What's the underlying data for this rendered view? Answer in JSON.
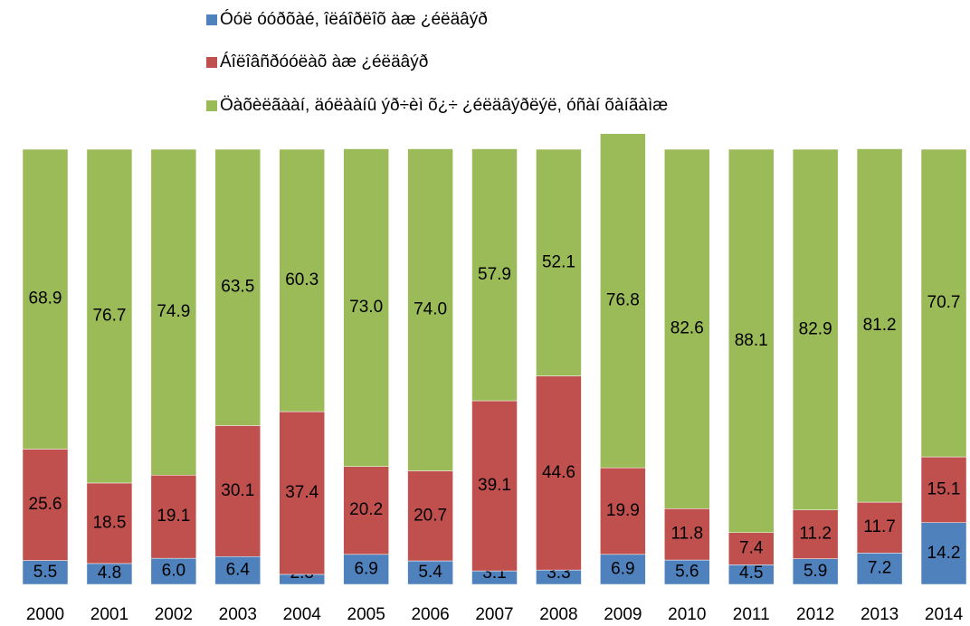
{
  "chart_data": {
    "type": "stacked_bar",
    "categories": [
      "2000",
      "2001",
      "2002",
      "2003",
      "2004",
      "2005",
      "2006",
      "2007",
      "2008",
      "2009",
      "2010",
      "2011",
      "2012",
      "2013",
      "2014"
    ],
    "series": [
      {
        "name": "Óóë óóðõàé, îëáîðëîõ àæ ¿éëäâýð",
        "color": "#4f81bd",
        "values": [
          5.5,
          4.8,
          6.0,
          6.4,
          2.3,
          6.9,
          5.4,
          3.1,
          3.3,
          6.9,
          5.6,
          4.5,
          5.9,
          7.2,
          14.2
        ],
        "value_labels": [
          "5.5",
          "4.8",
          "6.0",
          "6.4",
          "2.3",
          "6.9",
          "5.4",
          "3.1",
          "3.3",
          "6.9",
          "5.6",
          "4.5",
          "5.9",
          "7.2",
          "14.2"
        ]
      },
      {
        "name": "Áîëîâñðóóëàõ àæ ¿éëäâýð",
        "color": "#c0504d",
        "values": [
          25.6,
          18.5,
          19.1,
          30.1,
          37.4,
          20.2,
          20.7,
          39.1,
          44.6,
          19.9,
          11.8,
          7.4,
          11.2,
          11.7,
          15.1
        ],
        "value_labels": [
          "25.6",
          "18.5",
          "19.1",
          "30.1",
          "37.4",
          "20.2",
          "20.7",
          "39.1",
          "44.6",
          "19.9",
          "11.8",
          "7.4",
          "11.2",
          "11.7",
          "15.1"
        ]
      },
      {
        "name": "Öàõèëãààí, äóëààíû ýð÷èì õ¿÷ ¿éëäâýðëýë, óñàí õàíãàìæ",
        "color": "#9bbb59",
        "values": [
          68.9,
          76.7,
          74.9,
          63.5,
          60.3,
          73.0,
          74.0,
          57.9,
          52.1,
          76.8,
          82.6,
          88.1,
          82.9,
          81.2,
          70.7
        ],
        "value_labels": [
          "68.9",
          "76.7",
          "74.9",
          "63.5",
          "60.3",
          "73.0",
          "74.0",
          "57.9",
          "52.1",
          "76.8",
          "82.6",
          "88.1",
          "82.9",
          "81.2",
          "70.7"
        ]
      }
    ],
    "ylim": [
      0,
      100
    ]
  }
}
